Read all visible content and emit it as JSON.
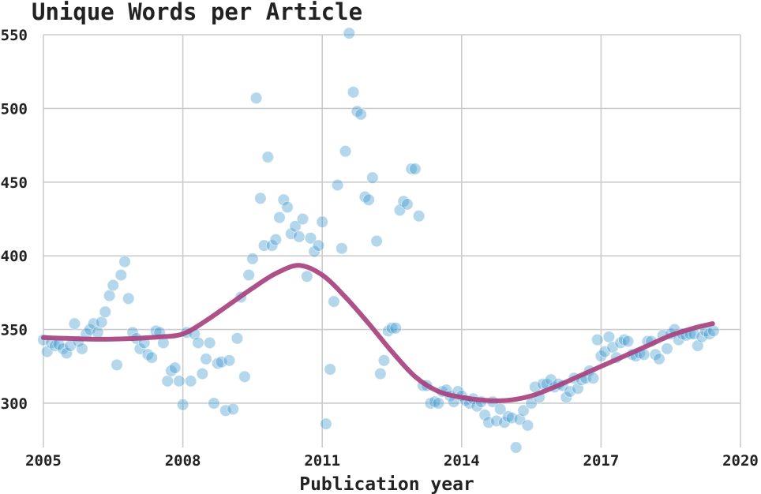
{
  "chart_data": {
    "type": "scatter",
    "title": "Unique Words per Article",
    "xlabel": "Publication year",
    "ylabel": "",
    "xlim": [
      2005,
      2020
    ],
    "ylim": [
      270,
      550
    ],
    "x_ticks": [
      2005,
      2008,
      2011,
      2014,
      2017,
      2020
    ],
    "y_ticks": [
      300,
      350,
      400,
      450,
      500,
      550
    ],
    "x_tick_labels": [
      "2005",
      "2008",
      "2011",
      "2014",
      "2017",
      "2020"
    ],
    "y_tick_labels": [
      "300",
      "350",
      "400",
      "450",
      "500",
      "550"
    ],
    "grid": true,
    "colors": {
      "points": "#3a97cc",
      "trend": "#a8427f",
      "grid": "#cccccc",
      "text": "#222222"
    },
    "series": [
      {
        "type": "scatter",
        "points": [
          [
            2005.0,
            343
          ],
          [
            2005.08,
            335
          ],
          [
            2005.17,
            341
          ],
          [
            2005.25,
            339
          ],
          [
            2005.33,
            340
          ],
          [
            2005.42,
            337
          ],
          [
            2005.5,
            334
          ],
          [
            2005.58,
            339
          ],
          [
            2005.67,
            354
          ],
          [
            2005.75,
            342
          ],
          [
            2005.83,
            337
          ],
          [
            2005.92,
            347
          ],
          [
            2006.0,
            350
          ],
          [
            2006.08,
            354
          ],
          [
            2006.17,
            348
          ],
          [
            2006.25,
            355
          ],
          [
            2006.33,
            362
          ],
          [
            2006.42,
            373
          ],
          [
            2006.5,
            380
          ],
          [
            2006.58,
            326
          ],
          [
            2006.67,
            387
          ],
          [
            2006.75,
            396
          ],
          [
            2006.83,
            371
          ],
          [
            2006.92,
            348
          ],
          [
            2007.0,
            344
          ],
          [
            2007.08,
            337
          ],
          [
            2007.17,
            341
          ],
          [
            2007.25,
            333
          ],
          [
            2007.33,
            331
          ],
          [
            2007.42,
            349
          ],
          [
            2007.5,
            348
          ],
          [
            2007.58,
            341
          ],
          [
            2007.67,
            315
          ],
          [
            2007.75,
            322
          ],
          [
            2007.83,
            324
          ],
          [
            2007.92,
            315
          ],
          [
            2008.0,
            299
          ],
          [
            2008.08,
            348
          ],
          [
            2008.17,
            315
          ],
          [
            2008.25,
            347
          ],
          [
            2008.33,
            341
          ],
          [
            2008.42,
            320
          ],
          [
            2008.5,
            330
          ],
          [
            2008.58,
            341
          ],
          [
            2008.67,
            300
          ],
          [
            2008.75,
            327
          ],
          [
            2008.83,
            328
          ],
          [
            2008.92,
            295
          ],
          [
            2009.0,
            329
          ],
          [
            2009.08,
            296
          ],
          [
            2009.17,
            344
          ],
          [
            2009.25,
            372
          ],
          [
            2009.33,
            318
          ],
          [
            2009.42,
            387
          ],
          [
            2009.5,
            398
          ],
          [
            2009.58,
            507
          ],
          [
            2009.67,
            439
          ],
          [
            2009.75,
            407
          ],
          [
            2009.83,
            467
          ],
          [
            2009.92,
            407
          ],
          [
            2010.0,
            411
          ],
          [
            2010.08,
            426
          ],
          [
            2010.17,
            438
          ],
          [
            2010.25,
            433
          ],
          [
            2010.33,
            415
          ],
          [
            2010.42,
            420
          ],
          [
            2010.5,
            413
          ],
          [
            2010.58,
            425
          ],
          [
            2010.67,
            386
          ],
          [
            2010.75,
            412
          ],
          [
            2010.83,
            403
          ],
          [
            2010.92,
            407
          ],
          [
            2011.0,
            423
          ],
          [
            2011.08,
            286
          ],
          [
            2011.17,
            323
          ],
          [
            2011.25,
            369
          ],
          [
            2011.33,
            448
          ],
          [
            2011.42,
            405
          ],
          [
            2011.5,
            471
          ],
          [
            2011.58,
            551
          ],
          [
            2011.67,
            511
          ],
          [
            2011.75,
            498
          ],
          [
            2011.83,
            496
          ],
          [
            2011.92,
            440
          ],
          [
            2012.0,
            438
          ],
          [
            2012.08,
            453
          ],
          [
            2012.17,
            410
          ],
          [
            2012.25,
            320
          ],
          [
            2012.33,
            329
          ],
          [
            2012.42,
            349
          ],
          [
            2012.5,
            351
          ],
          [
            2012.58,
            351
          ],
          [
            2012.67,
            431
          ],
          [
            2012.75,
            437
          ],
          [
            2012.83,
            435
          ],
          [
            2012.92,
            459
          ],
          [
            2013.0,
            459
          ],
          [
            2013.08,
            427
          ],
          [
            2013.17,
            312
          ],
          [
            2013.25,
            312
          ],
          [
            2013.33,
            300
          ],
          [
            2013.42,
            301
          ],
          [
            2013.5,
            300
          ],
          [
            2013.58,
            308
          ],
          [
            2013.67,
            309
          ],
          [
            2013.75,
            305
          ],
          [
            2013.83,
            301
          ],
          [
            2013.92,
            308
          ],
          [
            2014.0,
            305
          ],
          [
            2014.08,
            302
          ],
          [
            2014.17,
            300
          ],
          [
            2014.25,
            303
          ],
          [
            2014.33,
            298
          ],
          [
            2014.42,
            301
          ],
          [
            2014.5,
            292
          ],
          [
            2014.58,
            287
          ],
          [
            2014.67,
            301
          ],
          [
            2014.75,
            288
          ],
          [
            2014.83,
            296
          ],
          [
            2014.92,
            287
          ],
          [
            2015.0,
            291
          ],
          [
            2015.08,
            290
          ],
          [
            2015.17,
            270
          ],
          [
            2015.25,
            289
          ],
          [
            2015.33,
            295
          ],
          [
            2015.42,
            285
          ],
          [
            2015.5,
            300
          ],
          [
            2015.58,
            311
          ],
          [
            2015.67,
            304
          ],
          [
            2015.75,
            313
          ],
          [
            2015.83,
            313
          ],
          [
            2015.92,
            316
          ],
          [
            2016.0,
            311
          ],
          [
            2016.08,
            313
          ],
          [
            2016.17,
            312
          ],
          [
            2016.25,
            304
          ],
          [
            2016.33,
            308
          ],
          [
            2016.42,
            317
          ],
          [
            2016.5,
            310
          ],
          [
            2016.58,
            316
          ],
          [
            2016.67,
            317
          ],
          [
            2016.75,
            322
          ],
          [
            2016.83,
            317
          ],
          [
            2016.92,
            343
          ],
          [
            2017.0,
            332
          ],
          [
            2017.08,
            335
          ],
          [
            2017.17,
            345
          ],
          [
            2017.25,
            338
          ],
          [
            2017.33,
            331
          ],
          [
            2017.42,
            341
          ],
          [
            2017.5,
            343
          ],
          [
            2017.58,
            342
          ],
          [
            2017.67,
            333
          ],
          [
            2017.75,
            332
          ],
          [
            2017.83,
            334
          ],
          [
            2017.92,
            333
          ],
          [
            2018.0,
            342
          ],
          [
            2018.08,
            342
          ],
          [
            2018.17,
            333
          ],
          [
            2018.25,
            330
          ],
          [
            2018.33,
            346
          ],
          [
            2018.42,
            337
          ],
          [
            2018.5,
            347
          ],
          [
            2018.58,
            350
          ],
          [
            2018.67,
            343
          ],
          [
            2018.75,
            347
          ],
          [
            2018.83,
            346
          ],
          [
            2018.92,
            347
          ],
          [
            2019.0,
            347
          ],
          [
            2019.08,
            339
          ],
          [
            2019.17,
            345
          ],
          [
            2019.25,
            349
          ],
          [
            2019.33,
            347
          ],
          [
            2019.42,
            349
          ]
        ]
      },
      {
        "type": "line",
        "points": [
          [
            2005.0,
            344.5
          ],
          [
            2005.5,
            344
          ],
          [
            2006.0,
            343.5
          ],
          [
            2006.5,
            343.5
          ],
          [
            2007.0,
            344
          ],
          [
            2007.5,
            345
          ],
          [
            2008.0,
            347
          ],
          [
            2008.5,
            356
          ],
          [
            2009.0,
            367
          ],
          [
            2009.5,
            378
          ],
          [
            2010.0,
            388
          ],
          [
            2010.5,
            393.5
          ],
          [
            2011.0,
            387
          ],
          [
            2011.5,
            372
          ],
          [
            2012.0,
            354
          ],
          [
            2012.5,
            335
          ],
          [
            2013.0,
            318
          ],
          [
            2013.5,
            308
          ],
          [
            2014.0,
            304
          ],
          [
            2014.5,
            302
          ],
          [
            2015.0,
            302
          ],
          [
            2015.5,
            305
          ],
          [
            2016.0,
            311
          ],
          [
            2016.5,
            318
          ],
          [
            2017.0,
            325
          ],
          [
            2017.5,
            332
          ],
          [
            2018.0,
            339
          ],
          [
            2018.5,
            346
          ],
          [
            2019.0,
            351
          ],
          [
            2019.4,
            354
          ]
        ]
      }
    ]
  }
}
